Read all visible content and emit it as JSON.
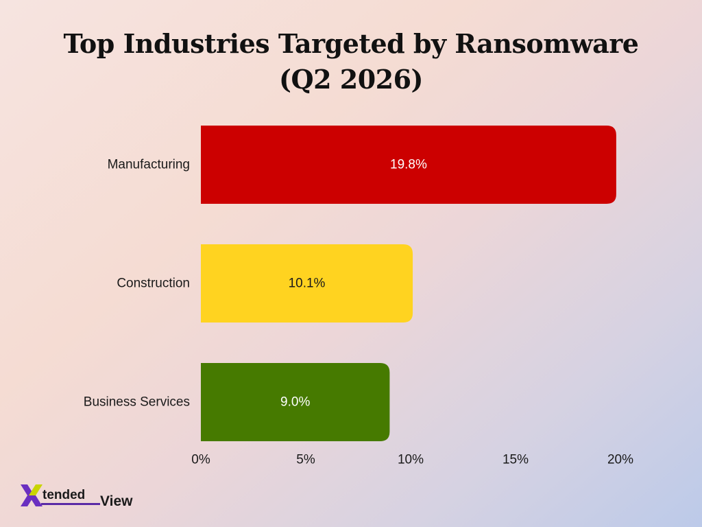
{
  "chart_data": {
    "type": "bar",
    "orientation": "horizontal",
    "title": "Top Industries Targeted by Ransomware (Q2 2026)",
    "title_lines": [
      "Top Industries Targeted by Ransomware",
      "(Q2 2026)"
    ],
    "categories": [
      "Manufacturing",
      "Construction",
      "Business Services"
    ],
    "values": [
      19.8,
      10.1,
      9.0
    ],
    "data_labels": [
      "19.8%",
      "10.1%",
      "9.0%"
    ],
    "bar_colors": [
      "#cc0000",
      "#ffd320",
      "#467a00"
    ],
    "label_colors": [
      "#ffffff",
      "#1a1a1a",
      "#ffffff"
    ],
    "xlim": [
      0,
      20
    ],
    "xticks": [
      0,
      5,
      10,
      15,
      20
    ],
    "xtick_labels": [
      "0%",
      "5%",
      "10%",
      "15%",
      "20%"
    ],
    "xlabel": "",
    "ylabel": "",
    "grid": false,
    "legend": false
  },
  "logo": {
    "brand_part1": "tended",
    "brand_part2": "View",
    "accent_color": "#6a2fc0",
    "accent_color_2": "#c9d400"
  }
}
